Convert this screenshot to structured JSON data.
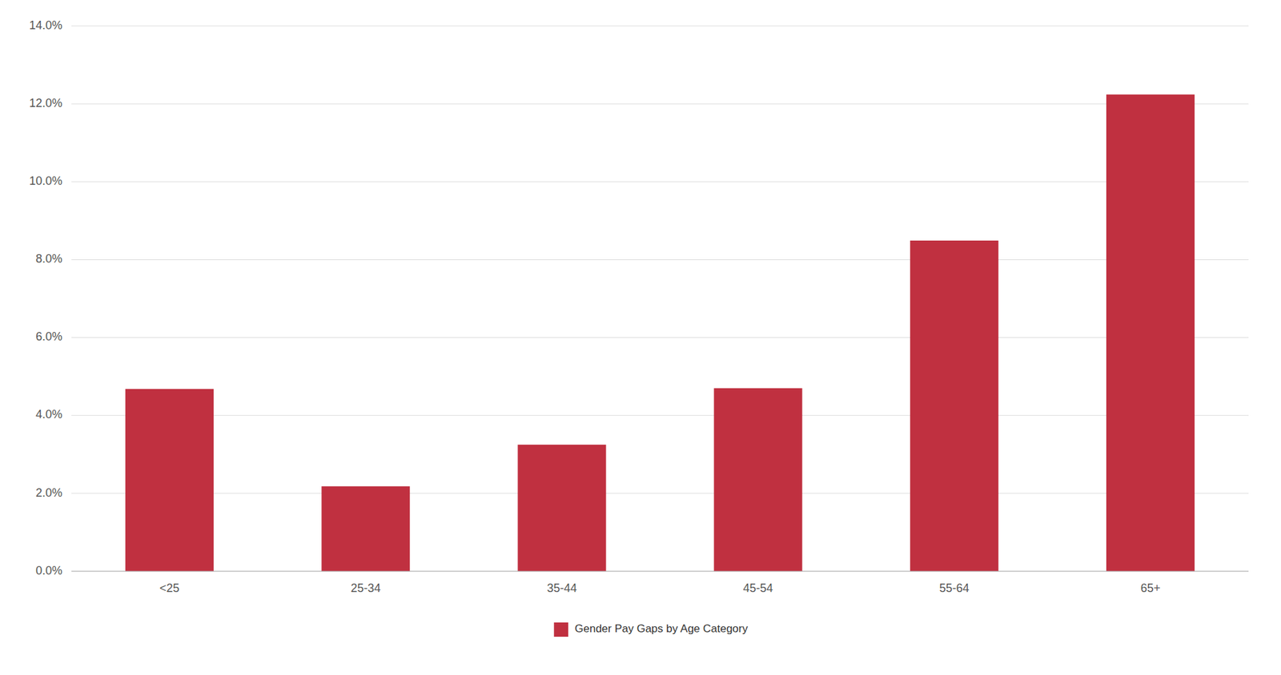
{
  "chart_data": {
    "type": "bar",
    "categories": [
      "<25",
      "25-34",
      "35-44",
      "45-54",
      "55-64",
      "65+"
    ],
    "series": [
      {
        "name": "Gender Pay Gaps by Age Category",
        "color": "#C03040",
        "values": [
          0.0468,
          0.0218,
          0.0325,
          0.047,
          0.0849,
          0.1224
        ]
      }
    ],
    "ylim": [
      0,
      0.14
    ],
    "yticks": [
      {
        "value": 0.0,
        "label": "0.0%"
      },
      {
        "value": 0.02,
        "label": "2.0%"
      },
      {
        "value": 0.04,
        "label": "4.0%"
      },
      {
        "value": 0.06,
        "label": "6.0%"
      },
      {
        "value": 0.08,
        "label": "8.0%"
      },
      {
        "value": 0.1,
        "label": "10.0%"
      },
      {
        "value": 0.12,
        "label": "12.0%"
      },
      {
        "value": 0.14,
        "label": "14.0%"
      }
    ],
    "grid": true,
    "legend": "bottom"
  }
}
